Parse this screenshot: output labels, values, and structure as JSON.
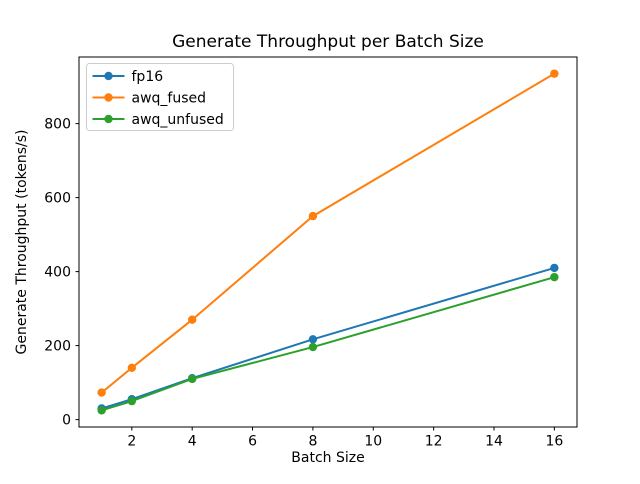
{
  "chart_data": {
    "type": "line",
    "title": "Generate Throughput per Batch Size",
    "xlabel": "Batch Size",
    "ylabel": "Generate Throughput (tokens/s)",
    "x": [
      1,
      2,
      4,
      8,
      16
    ],
    "series": [
      {
        "name": "fp16",
        "color": "#1f77b4",
        "values": [
          30,
          55,
          112,
          217,
          410
        ]
      },
      {
        "name": "awq_fused",
        "color": "#ff7f0e",
        "values": [
          73,
          140,
          270,
          550,
          935
        ]
      },
      {
        "name": "awq_unfused",
        "color": "#2ca02c",
        "values": [
          25,
          50,
          110,
          196,
          385
        ]
      }
    ],
    "xlim": [
      0.25,
      16.75
    ],
    "ylim": [
      -20,
      980
    ],
    "xticks": [
      2,
      4,
      6,
      8,
      10,
      12,
      14,
      16
    ],
    "yticks": [
      0,
      200,
      400,
      600,
      800
    ],
    "grid": false,
    "marker": "o",
    "legend_position": "upper left",
    "legend_border_color": "#cccccc",
    "spine_color": "#000000"
  }
}
